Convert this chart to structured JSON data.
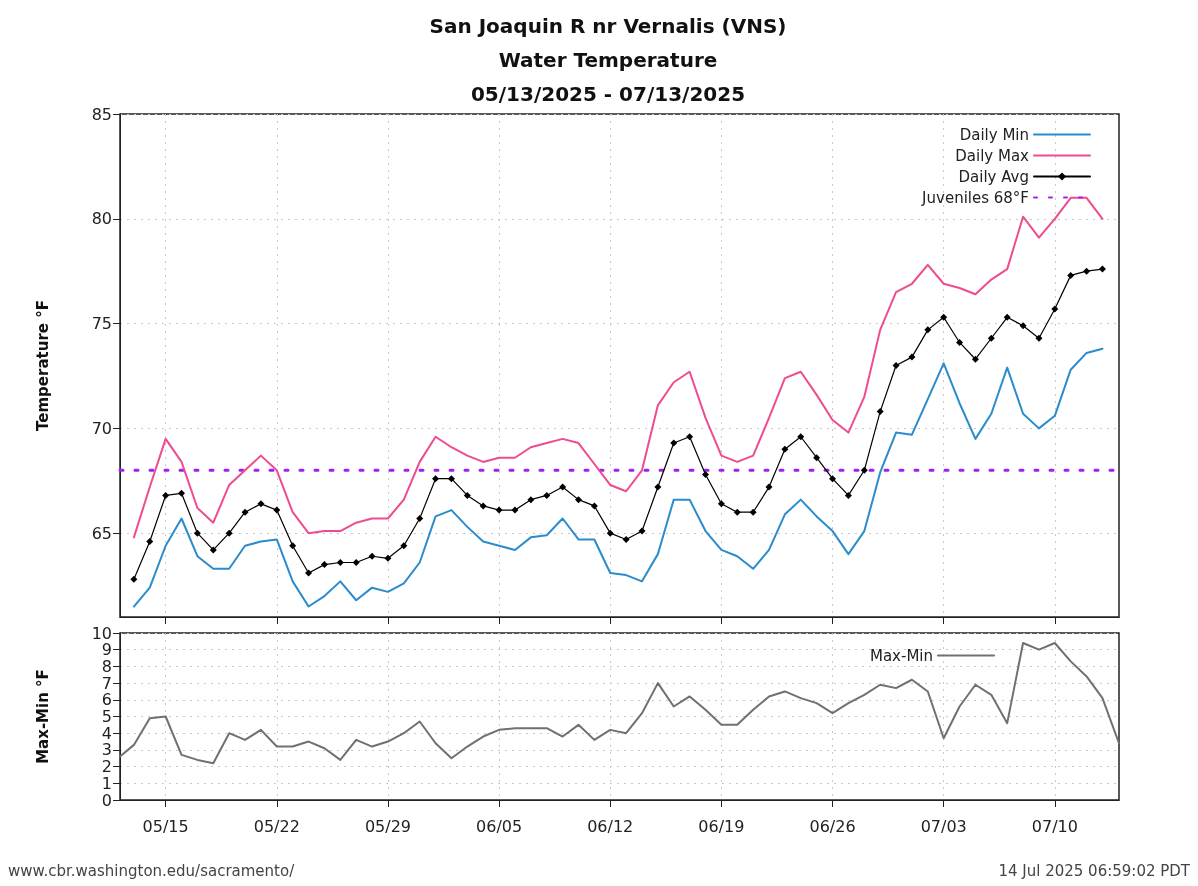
{
  "chart_data": [
    {
      "type": "line",
      "title": "San Joaquin R nr Vernalis (VNS)\nWater Temperature\n05/13/2025 - 07/13/2025",
      "ylabel": "Temperature °F",
      "x": [
        "2025-05-13",
        "2025-05-14",
        "2025-05-15",
        "2025-05-16",
        "2025-05-17",
        "2025-05-18",
        "2025-05-19",
        "2025-05-20",
        "2025-05-21",
        "2025-05-22",
        "2025-05-23",
        "2025-05-24",
        "2025-05-25",
        "2025-05-26",
        "2025-05-27",
        "2025-05-28",
        "2025-05-29",
        "2025-05-30",
        "2025-05-31",
        "2025-06-01",
        "2025-06-02",
        "2025-06-03",
        "2025-06-04",
        "2025-06-05",
        "2025-06-06",
        "2025-06-07",
        "2025-06-08",
        "2025-06-09",
        "2025-06-10",
        "2025-06-11",
        "2025-06-12",
        "2025-06-13",
        "2025-06-14",
        "2025-06-15",
        "2025-06-16",
        "2025-06-17",
        "2025-06-18",
        "2025-06-19",
        "2025-06-20",
        "2025-06-21",
        "2025-06-22",
        "2025-06-23",
        "2025-06-24",
        "2025-06-25",
        "2025-06-26",
        "2025-06-27",
        "2025-06-28",
        "2025-06-29",
        "2025-06-30",
        "2025-07-01",
        "2025-07-02",
        "2025-07-03",
        "2025-07-04",
        "2025-07-05",
        "2025-07-06",
        "2025-07-07",
        "2025-07-08",
        "2025-07-09",
        "2025-07-10",
        "2025-07-11",
        "2025-07-12",
        "2025-07-13"
      ],
      "series": [
        {
          "name": "Daily Min",
          "color": "#2a8ccc",
          "marker": "none",
          "values": [
            61.5,
            62.4,
            64.4,
            65.7,
            63.9,
            63.3,
            63.3,
            64.4,
            64.6,
            64.7,
            62.7,
            61.5,
            62.0,
            62.7,
            61.8,
            62.4,
            62.2,
            62.6,
            63.6,
            65.8,
            66.1,
            65.3,
            64.6,
            64.4,
            64.2,
            64.8,
            64.9,
            65.7,
            64.7,
            64.7,
            63.1,
            63.0,
            62.7,
            64.0,
            66.6,
            66.6,
            65.1,
            64.2,
            63.9,
            63.3,
            64.2,
            65.9,
            66.6,
            65.8,
            65.1,
            64.0,
            65.1,
            67.9,
            69.8,
            69.7,
            71.4,
            73.1,
            71.2,
            69.5,
            70.7,
            72.9,
            70.7,
            70.0,
            70.6,
            72.8,
            73.6,
            73.8
          ]
        },
        {
          "name": "Daily Max",
          "color": "#ee4b91",
          "marker": "none",
          "values": [
            64.8,
            67.2,
            69.5,
            68.4,
            66.2,
            65.5,
            67.3,
            68.0,
            68.7,
            68.0,
            66.0,
            65.0,
            65.1,
            65.1,
            65.5,
            65.7,
            65.7,
            66.6,
            68.4,
            69.6,
            69.1,
            68.7,
            68.4,
            68.6,
            68.6,
            69.1,
            69.3,
            69.5,
            69.3,
            68.3,
            67.3,
            67.0,
            68.0,
            71.1,
            72.2,
            72.7,
            70.5,
            68.7,
            68.4,
            68.7,
            70.5,
            72.4,
            72.7,
            71.6,
            70.4,
            69.8,
            71.5,
            74.7,
            76.5,
            76.9,
            77.8,
            76.9,
            76.7,
            76.4,
            77.1,
            77.6,
            80.1,
            79.1,
            80.0,
            81.0,
            81.0,
            80.0
          ]
        },
        {
          "name": "Daily Avg",
          "color": "#000000",
          "marker": "diamond",
          "values": [
            62.8,
            64.6,
            66.8,
            66.9,
            65.0,
            64.2,
            65.0,
            66.0,
            66.4,
            66.1,
            64.4,
            63.1,
            63.5,
            63.6,
            63.6,
            63.9,
            63.8,
            64.4,
            65.7,
            67.6,
            67.6,
            66.8,
            66.3,
            66.1,
            66.1,
            66.6,
            66.8,
            67.2,
            66.6,
            66.3,
            65.0,
            64.7,
            65.1,
            67.2,
            69.3,
            69.6,
            67.8,
            66.4,
            66.0,
            66.0,
            67.2,
            69.0,
            69.6,
            68.6,
            67.6,
            66.8,
            68.0,
            70.8,
            73.0,
            73.4,
            74.7,
            75.3,
            74.1,
            73.3,
            74.3,
            75.3,
            74.9,
            74.3,
            75.7,
            77.3,
            77.5,
            77.6
          ]
        }
      ],
      "ref_lines": [
        {
          "axis": "y",
          "value": 68,
          "label": "Juveniles 68°F",
          "color": "#a020f0",
          "line_style": "dotted"
        }
      ],
      "xlim": [
        "2025-05-12T03:00",
        "2025-07-14T01:00"
      ],
      "xticks": [
        {
          "value": "2025-05-15",
          "label": null
        },
        {
          "value": "2025-05-22",
          "label": null
        },
        {
          "value": "2025-05-29",
          "label": null
        },
        {
          "value": "2025-06-05",
          "label": null
        },
        {
          "value": "2025-06-12",
          "label": null
        },
        {
          "value": "2025-06-19",
          "label": null
        },
        {
          "value": "2025-06-26",
          "label": null
        },
        {
          "value": "2025-07-03",
          "label": null
        },
        {
          "value": "2025-07-10",
          "label": null
        }
      ],
      "ylim": [
        61,
        85
      ],
      "yticks": [
        65,
        70,
        75,
        80,
        85
      ],
      "tick_labels": "y",
      "grid": true,
      "legend": "top right"
    },
    {
      "type": "line",
      "ylabel": "Max-Min °F",
      "series": [
        {
          "name": "Max-Min",
          "color": "#707070",
          "marker": "none",
          "x": [
            "2025-05-12T03:00",
            "2025-05-13",
            "2025-05-14",
            "2025-05-15",
            "2025-05-16",
            "2025-05-17",
            "2025-05-18",
            "2025-05-19",
            "2025-05-20",
            "2025-05-21",
            "2025-05-22",
            "2025-05-23",
            "2025-05-24",
            "2025-05-25",
            "2025-05-26",
            "2025-05-27",
            "2025-05-28",
            "2025-05-29",
            "2025-05-30",
            "2025-05-31",
            "2025-06-01",
            "2025-06-02",
            "2025-06-03",
            "2025-06-04",
            "2025-06-05",
            "2025-06-06",
            "2025-06-07",
            "2025-06-08",
            "2025-06-09",
            "2025-06-10",
            "2025-06-11",
            "2025-06-12",
            "2025-06-13",
            "2025-06-14",
            "2025-06-15",
            "2025-06-16",
            "2025-06-17",
            "2025-06-18",
            "2025-06-19",
            "2025-06-20",
            "2025-06-21",
            "2025-06-22",
            "2025-06-23",
            "2025-06-24",
            "2025-06-25",
            "2025-06-26",
            "2025-06-27",
            "2025-06-28",
            "2025-06-29",
            "2025-06-30",
            "2025-07-01",
            "2025-07-02",
            "2025-07-03",
            "2025-07-04",
            "2025-07-05",
            "2025-07-06",
            "2025-07-07",
            "2025-07-08",
            "2025-07-09",
            "2025-07-10",
            "2025-07-11",
            "2025-07-12",
            "2025-07-13",
            "2025-07-14T01:00"
          ],
          "values": [
            2.6,
            3.3,
            4.9,
            5.0,
            2.7,
            2.4,
            2.2,
            4.0,
            3.6,
            4.2,
            3.2,
            3.2,
            3.5,
            3.1,
            2.4,
            3.6,
            3.2,
            3.5,
            4.0,
            4.7,
            3.4,
            2.5,
            3.2,
            3.8,
            4.2,
            4.3,
            4.3,
            4.3,
            3.8,
            4.5,
            3.6,
            4.2,
            4.0,
            5.2,
            7.0,
            5.6,
            6.2,
            5.4,
            4.5,
            4.5,
            5.4,
            6.2,
            6.5,
            6.1,
            5.8,
            5.2,
            5.8,
            6.3,
            6.9,
            6.7,
            7.2,
            6.5,
            3.7,
            5.6,
            6.9,
            6.3,
            4.6,
            9.4,
            9.0,
            9.4,
            8.3,
            7.4,
            6.1,
            3.4
          ]
        }
      ],
      "xlim": [
        "2025-05-12T03:00",
        "2025-07-14T01:00"
      ],
      "xticks": [
        {
          "value": "2025-05-15",
          "label": "05/15"
        },
        {
          "value": "2025-05-22",
          "label": "05/22"
        },
        {
          "value": "2025-05-29",
          "label": "05/29"
        },
        {
          "value": "2025-06-05",
          "label": "06/05"
        },
        {
          "value": "2025-06-12",
          "label": "06/12"
        },
        {
          "value": "2025-06-19",
          "label": "06/19"
        },
        {
          "value": "2025-06-26",
          "label": "06/26"
        },
        {
          "value": "2025-07-03",
          "label": "07/03"
        },
        {
          "value": "2025-07-10",
          "label": "07/10"
        }
      ],
      "ylim": [
        0,
        10
      ],
      "yticks": [
        0,
        1,
        2,
        3,
        4,
        5,
        6,
        7,
        8,
        9,
        10
      ],
      "grid": true,
      "legend": "top right",
      "annotations": [
        "www.cbr.washington.edu/sacramento/",
        "14 Jul 2025 06:59:02 PDT"
      ]
    }
  ]
}
